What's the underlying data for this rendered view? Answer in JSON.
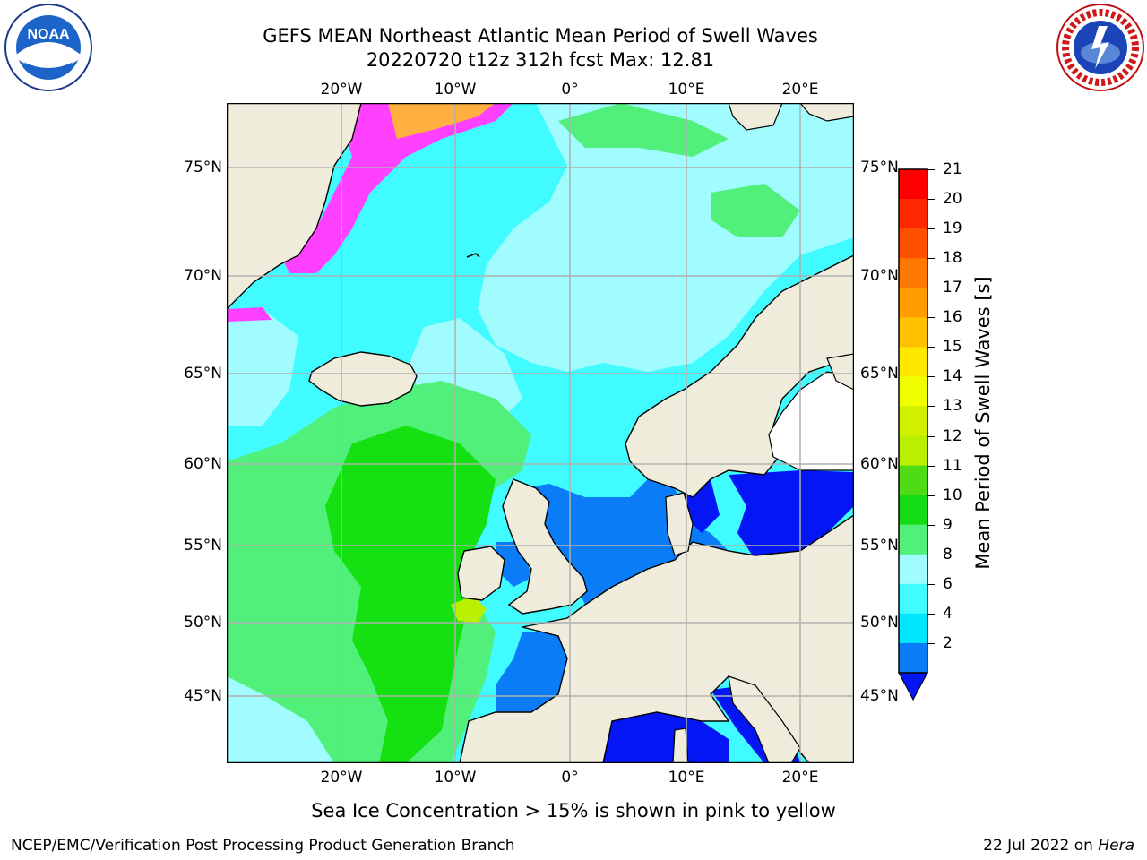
{
  "header": {
    "title_line1": "GEFS MEAN Northeast Atlantic Mean Period of Swell Waves",
    "title_line2": "20220720 t12z 312h fcst   Max: 12.81",
    "left_logo_text": "NOAA",
    "left_logo_ring_text": "NATIONAL OCEANIC AND ATMOSPHERIC ADMINISTRATION · U.S. DEPARTMENT OF COMMERCE",
    "right_logo_ring_text": "NATIONAL WEATHER SERVICE"
  },
  "map": {
    "lon_labels": [
      "20°W",
      "10°W",
      "0°",
      "10°E",
      "20°E"
    ],
    "lat_labels": [
      "75°N",
      "70°N",
      "65°N",
      "60°N",
      "55°N",
      "50°N",
      "45°N"
    ],
    "caption": "Sea Ice Concentration > 15% is shown in pink to yellow",
    "colors": {
      "land": "#efecdc",
      "ocean_cyan": "#40fbff",
      "light_cyan": "#a0fcff",
      "green_9": "#50f07a",
      "green_10": "#14e012",
      "low_blue": "#0a7cf8",
      "dark_blue": "#0516f5",
      "ice_pink": "#ff40ff",
      "ice_orange": "#ffb040",
      "grid": "#b0b0b0"
    }
  },
  "colorbar": {
    "label": "Mean Period of Swell Waves [s]",
    "ticks": [
      "21",
      "20",
      "19",
      "18",
      "17",
      "16",
      "15",
      "14",
      "13",
      "12",
      "11",
      "10",
      "9",
      "8",
      "6",
      "4",
      "2"
    ],
    "colors": [
      "#ff0000",
      "#ff2800",
      "#ff5000",
      "#ff7800",
      "#ff9c00",
      "#ffc000",
      "#ffe800",
      "#f0ff00",
      "#d0f000",
      "#b8f000",
      "#50dc14",
      "#14dc14",
      "#50f07a",
      "#a0fcff",
      "#40fbff",
      "#00e6ff",
      "#0a7cf8"
    ],
    "extend_color": "#0516f5"
  },
  "footer": {
    "left_text": "NCEP/EMC/Verification Post Processing Product Generation Branch",
    "right_text_prefix": "22 Jul 2022 on ",
    "right_text_host": "Hera"
  }
}
